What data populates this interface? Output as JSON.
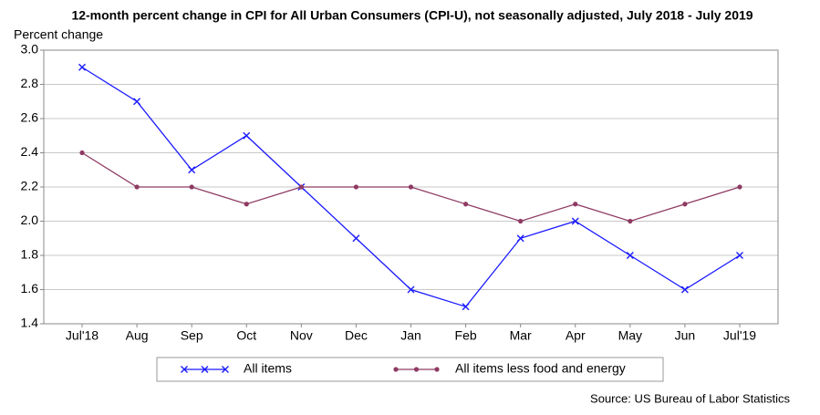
{
  "chart_data": {
    "type": "line",
    "title": "12-month percent change in CPI for All Urban Consumers (CPI-U), not seasonally adjusted, July 2018 - July 2019",
    "y_label": "Percent change",
    "source": "Source: US Bureau of Labor Statistics",
    "categories": [
      "Jul'18",
      "Aug",
      "Sep",
      "Oct",
      "Nov",
      "Dec",
      "Jan",
      "Feb",
      "Mar",
      "Apr",
      "May",
      "Jun",
      "Jul'19"
    ],
    "series": [
      {
        "name": "All items",
        "color": "#1a1aff",
        "marker": "x",
        "values": [
          2.9,
          2.7,
          2.3,
          2.5,
          2.2,
          1.9,
          1.6,
          1.5,
          1.9,
          2.0,
          1.8,
          1.6,
          1.8
        ]
      },
      {
        "name": "All items less food and energy",
        "color": "#8e3a63",
        "marker": "dot",
        "values": [
          2.4,
          2.2,
          2.2,
          2.1,
          2.2,
          2.2,
          2.2,
          2.1,
          2.0,
          2.1,
          2.0,
          2.1,
          2.2
        ]
      }
    ],
    "ylim": [
      1.4,
      3.0
    ],
    "yticks": [
      1.4,
      1.6,
      1.8,
      {
        "value": 2.0,
        "label": "2.0"
      },
      2.2,
      2.4,
      2.6,
      2.8,
      {
        "value": 3.0,
        "label": "3.0"
      }
    ],
    "grid": true,
    "legend": "bottom"
  }
}
